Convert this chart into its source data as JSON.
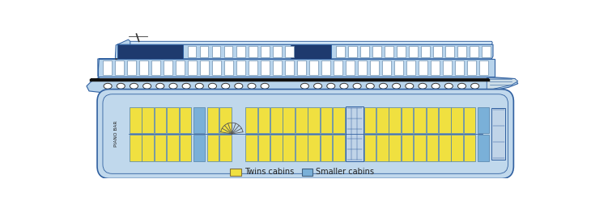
{
  "bg_color": "#ffffff",
  "ship_light_blue": "#b8d4ec",
  "ship_dark_blue": "#1e3a6e",
  "ship_outline": "#3060a0",
  "window_white": "#ffffff",
  "yellow_cabin": "#f0e040",
  "blue_cabin": "#7ab0d8",
  "corridor_blue": "#c0d8ec",
  "legend_yellow": "#f0e040",
  "legend_blue": "#7ab0d8",
  "twins_label": "Twins cabins",
  "smaller_label": "Smaller cabins",
  "piano_bar_label": "PIANO BAR"
}
